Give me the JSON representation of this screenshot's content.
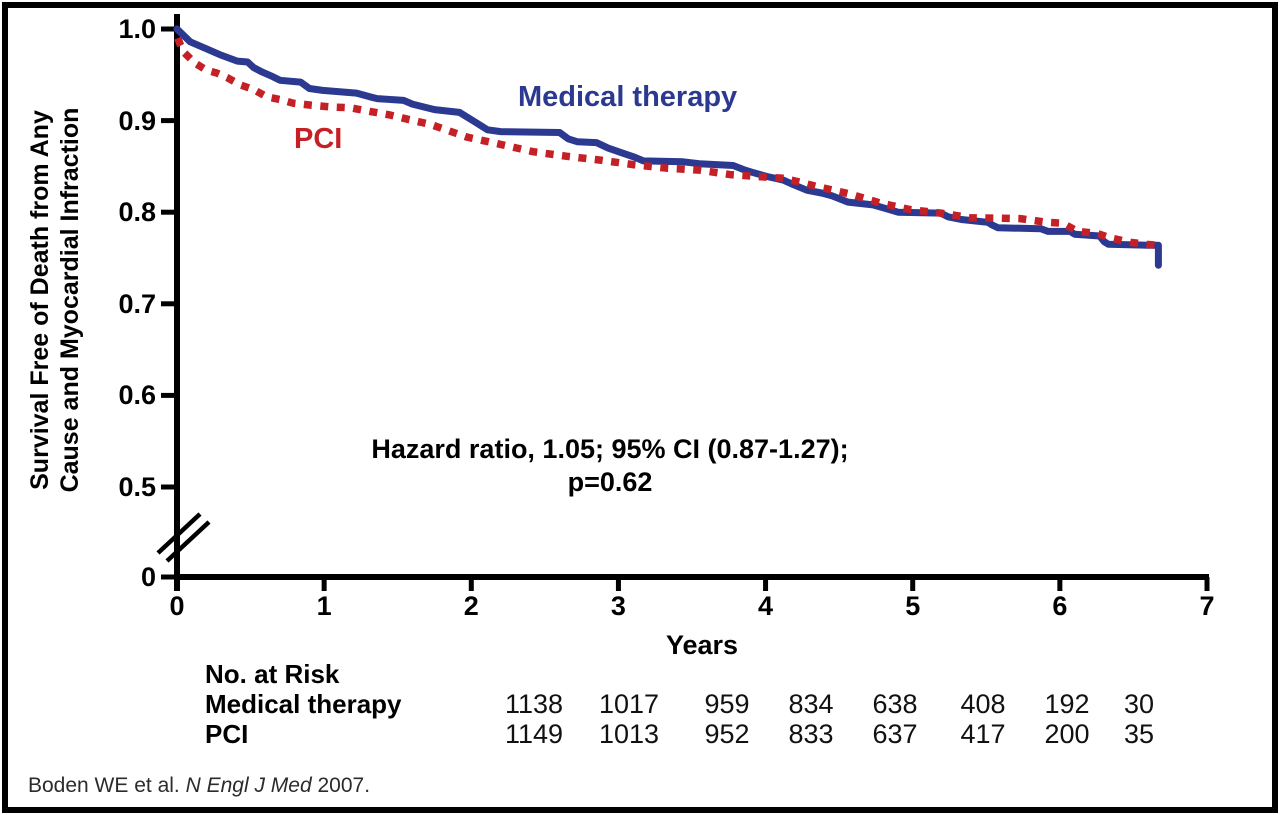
{
  "figure": {
    "y_axis_title_line1": "Survival Free of Death from Any",
    "y_axis_title_line2": "Cause and Myocardial Infraction",
    "x_axis_title": "Years",
    "annotation_line1": "Hazard ratio, 1.05; 95% CI (0.87-1.27);",
    "annotation_line2": "p=0.62",
    "colors": {
      "medical": "#2b3990",
      "pci": "#c42026",
      "axis": "#000000"
    }
  },
  "risk_table": {
    "header": "No. at Risk",
    "rows": [
      {
        "label": "Medical therapy",
        "values": [
          "1138",
          "1017",
          "959",
          "834",
          "638",
          "408",
          "192",
          "30"
        ]
      },
      {
        "label": "PCI",
        "values": [
          "1149",
          "1013",
          "952",
          "833",
          "637",
          "417",
          "200",
          "35"
        ]
      }
    ]
  },
  "citation": {
    "prefix": "Boden WE et al. ",
    "journal": "N Engl J Med",
    "suffix": " 2007."
  },
  "chart_data": {
    "type": "line",
    "title": "",
    "xlabel": "Years",
    "ylabel": "Survival Free of Death from Any Cause and Myocardial Infraction",
    "x_tick_labels": [
      "0",
      "1",
      "2",
      "3",
      "4",
      "5",
      "6",
      "7"
    ],
    "y_tick_labels": [
      "1.0",
      "0.9",
      "0.8",
      "0.7",
      "0.6",
      "0.5",
      "0"
    ],
    "xlim": [
      0,
      7
    ],
    "ylim": [
      0.5,
      1.0
    ],
    "axis_break_below": 0.5,
    "grid": false,
    "legend_position": "inline-labels",
    "annotation": "Hazard ratio, 1.05; 95% CI (0.87-1.27); p=0.62",
    "series": [
      {
        "name": "Medical therapy",
        "style": "solid",
        "color": "#2b3990",
        "points": [
          [
            0,
            1.0
          ],
          [
            0.09,
            0.986
          ],
          [
            0.19,
            0.979
          ],
          [
            0.29,
            0.972
          ],
          [
            0.41,
            0.965
          ],
          [
            0.48,
            0.964
          ],
          [
            0.52,
            0.958
          ],
          [
            0.58,
            0.953
          ],
          [
            0.65,
            0.948
          ],
          [
            0.7,
            0.944
          ],
          [
            0.84,
            0.942
          ],
          [
            0.9,
            0.935
          ],
          [
            0.99,
            0.933
          ],
          [
            1.22,
            0.93
          ],
          [
            1.31,
            0.926
          ],
          [
            1.36,
            0.924
          ],
          [
            1.54,
            0.922
          ],
          [
            1.6,
            0.918
          ],
          [
            1.75,
            0.912
          ],
          [
            1.92,
            0.909
          ],
          [
            2.04,
            0.897
          ],
          [
            2.11,
            0.89
          ],
          [
            2.2,
            0.888
          ],
          [
            2.6,
            0.887
          ],
          [
            2.66,
            0.88
          ],
          [
            2.72,
            0.877
          ],
          [
            2.85,
            0.876
          ],
          [
            2.93,
            0.87
          ],
          [
            3.02,
            0.865
          ],
          [
            3.11,
            0.86
          ],
          [
            3.17,
            0.856
          ],
          [
            3.44,
            0.855
          ],
          [
            3.55,
            0.853
          ],
          [
            3.78,
            0.851
          ],
          [
            3.86,
            0.846
          ],
          [
            3.92,
            0.843
          ],
          [
            4.01,
            0.839
          ],
          [
            4.12,
            0.835
          ],
          [
            4.19,
            0.83
          ],
          [
            4.28,
            0.824
          ],
          [
            4.38,
            0.821
          ],
          [
            4.45,
            0.818
          ],
          [
            4.56,
            0.811
          ],
          [
            4.73,
            0.808
          ],
          [
            4.84,
            0.803
          ],
          [
            4.9,
            0.8
          ],
          [
            5.19,
            0.799
          ],
          [
            5.24,
            0.795
          ],
          [
            5.33,
            0.792
          ],
          [
            5.51,
            0.789
          ],
          [
            5.54,
            0.786
          ],
          [
            5.58,
            0.783
          ],
          [
            5.87,
            0.782
          ],
          [
            5.92,
            0.779
          ],
          [
            6.07,
            0.779
          ],
          [
            6.1,
            0.776
          ],
          [
            6.27,
            0.774
          ],
          [
            6.3,
            0.768
          ],
          [
            6.33,
            0.765
          ],
          [
            6.6,
            0.764
          ],
          [
            6.67,
            0.764
          ],
          [
            6.67,
            0.742
          ]
        ]
      },
      {
        "name": "PCI",
        "style": "dotted",
        "color": "#c42026",
        "points": [
          [
            0.005,
            0.99
          ],
          [
            0.02,
            0.984
          ],
          [
            0.05,
            0.974
          ],
          [
            0.12,
            0.963
          ],
          [
            0.2,
            0.955
          ],
          [
            0.27,
            0.952
          ],
          [
            0.34,
            0.947
          ],
          [
            0.43,
            0.939
          ],
          [
            0.52,
            0.934
          ],
          [
            0.61,
            0.926
          ],
          [
            0.7,
            0.923
          ],
          [
            0.79,
            0.919
          ],
          [
            0.9,
            0.917
          ],
          [
            1.04,
            0.915
          ],
          [
            1.18,
            0.914
          ],
          [
            1.31,
            0.91
          ],
          [
            1.45,
            0.906
          ],
          [
            1.58,
            0.901
          ],
          [
            1.72,
            0.896
          ],
          [
            1.97,
            0.882
          ],
          [
            2.2,
            0.874
          ],
          [
            2.42,
            0.866
          ],
          [
            2.65,
            0.861
          ],
          [
            2.87,
            0.857
          ],
          [
            3.1,
            0.852
          ],
          [
            3.33,
            0.848
          ],
          [
            3.55,
            0.846
          ],
          [
            3.76,
            0.841
          ],
          [
            4.12,
            0.837
          ],
          [
            4.23,
            0.833
          ],
          [
            4.35,
            0.828
          ],
          [
            4.46,
            0.824
          ],
          [
            4.57,
            0.82
          ],
          [
            4.78,
            0.81
          ],
          [
            4.98,
            0.803
          ],
          [
            5.19,
            0.799
          ],
          [
            5.39,
            0.794
          ],
          [
            5.73,
            0.793
          ],
          [
            5.91,
            0.789
          ],
          [
            6.02,
            0.788
          ],
          [
            6.12,
            0.779
          ],
          [
            6.25,
            0.777
          ],
          [
            6.34,
            0.772
          ],
          [
            6.48,
            0.767
          ],
          [
            6.59,
            0.765
          ],
          [
            6.66,
            0.764
          ]
        ]
      }
    ]
  }
}
